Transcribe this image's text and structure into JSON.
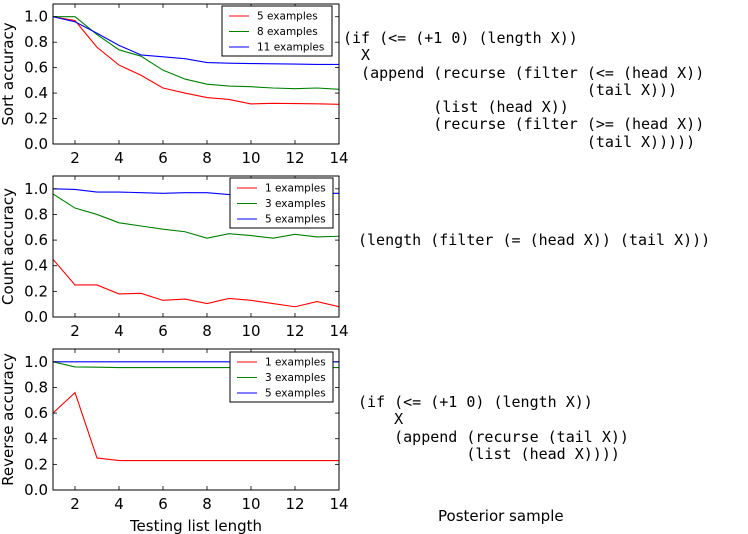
{
  "chart_data": [
    {
      "type": "line",
      "ylabel": "Sort accuracy",
      "xlabel": "",
      "xlim": [
        1,
        14
      ],
      "ylim": [
        0,
        1.1
      ],
      "xticks": [
        "2",
        "4",
        "6",
        "8",
        "10",
        "12",
        "14"
      ],
      "yticks": [
        "0.0",
        "0.2",
        "0.4",
        "0.6",
        "0.8",
        "1.0"
      ],
      "grid": false,
      "legend_position": "top-right",
      "series": [
        {
          "name": "5 examples",
          "color": "#ff0000",
          "x": [
            1,
            2,
            3,
            4,
            5,
            6,
            7,
            8,
            9,
            10,
            11,
            12,
            13,
            14
          ],
          "y": [
            1.0,
            0.97,
            0.76,
            0.62,
            0.54,
            0.44,
            0.4,
            0.365,
            0.35,
            0.315,
            0.32,
            0.318,
            0.316,
            0.312
          ]
        },
        {
          "name": "8 examples",
          "color": "#008000",
          "x": [
            1,
            2,
            3,
            4,
            5,
            6,
            7,
            8,
            9,
            10,
            11,
            12,
            13,
            14
          ],
          "y": [
            1.0,
            1.0,
            0.86,
            0.74,
            0.69,
            0.58,
            0.51,
            0.47,
            0.455,
            0.45,
            0.44,
            0.435,
            0.44,
            0.43
          ]
        },
        {
          "name": "11 examples",
          "color": "#0000ff",
          "x": [
            1,
            2,
            3,
            4,
            5,
            6,
            7,
            8,
            9,
            10,
            11,
            12,
            13,
            14
          ],
          "y": [
            1.0,
            0.96,
            0.87,
            0.775,
            0.7,
            0.685,
            0.67,
            0.64,
            0.635,
            0.632,
            0.63,
            0.628,
            0.625,
            0.625
          ]
        }
      ],
      "code": "(if (<= (+1 0) (length X))\n  X\n  (append (recurse (filter (<= (head X)) \n                           (tail X)))\n          (list (head X))\n          (recurse (filter (>= (head X)) \n                           (tail X)))))"
    },
    {
      "type": "line",
      "ylabel": "Count accuracy",
      "xlabel": "",
      "xlim": [
        1,
        14
      ],
      "ylim": [
        0,
        1.1
      ],
      "xticks": [
        "2",
        "4",
        "6",
        "8",
        "10",
        "12",
        "14"
      ],
      "yticks": [
        "0.0",
        "0.2",
        "0.4",
        "0.6",
        "0.8",
        "1.0"
      ],
      "grid": false,
      "legend_position": "top-right",
      "series": [
        {
          "name": "1 examples",
          "color": "#ff0000",
          "x": [
            1,
            2,
            3,
            4,
            5,
            6,
            7,
            8,
            9,
            10,
            11,
            12,
            13,
            14
          ],
          "y": [
            0.45,
            0.25,
            0.25,
            0.18,
            0.185,
            0.13,
            0.14,
            0.105,
            0.145,
            0.13,
            0.105,
            0.08,
            0.12,
            0.08
          ]
        },
        {
          "name": "3 examples",
          "color": "#008000",
          "x": [
            1,
            2,
            3,
            4,
            5,
            6,
            7,
            8,
            9,
            10,
            11,
            12,
            13,
            14
          ],
          "y": [
            0.96,
            0.85,
            0.8,
            0.735,
            0.71,
            0.685,
            0.665,
            0.615,
            0.65,
            0.635,
            0.615,
            0.645,
            0.625,
            0.63
          ]
        },
        {
          "name": "5 examples",
          "color": "#0000ff",
          "x": [
            1,
            2,
            3,
            4,
            5,
            6,
            7,
            8,
            9,
            10,
            11,
            12,
            13,
            14
          ],
          "y": [
            1.0,
            0.995,
            0.975,
            0.975,
            0.97,
            0.965,
            0.97,
            0.97,
            0.955,
            0.96,
            0.96,
            0.96,
            0.965,
            0.965
          ]
        }
      ],
      "code": "(length (filter (= (head X)) (tail X)))"
    },
    {
      "type": "line",
      "ylabel": "Reverse accuracy",
      "xlabel": "Testing list length",
      "xlim": [
        1,
        14
      ],
      "ylim": [
        0,
        1.1
      ],
      "xticks": [
        "2",
        "4",
        "6",
        "8",
        "10",
        "12",
        "14"
      ],
      "yticks": [
        "0.0",
        "0.2",
        "0.4",
        "0.6",
        "0.8",
        "1.0"
      ],
      "grid": false,
      "legend_position": "top-right",
      "series": [
        {
          "name": "1 examples",
          "color": "#ff0000",
          "x": [
            1,
            2,
            3,
            4,
            5,
            6,
            7,
            8,
            9,
            10,
            11,
            12,
            13,
            14
          ],
          "y": [
            0.6,
            0.76,
            0.25,
            0.23,
            0.23,
            0.23,
            0.23,
            0.23,
            0.23,
            0.23,
            0.23,
            0.23,
            0.23,
            0.23
          ]
        },
        {
          "name": "3 examples",
          "color": "#008000",
          "x": [
            1,
            2,
            3,
            4,
            5,
            6,
            7,
            8,
            9,
            10,
            11,
            12,
            13,
            14
          ],
          "y": [
            1.0,
            0.96,
            0.958,
            0.955,
            0.955,
            0.955,
            0.955,
            0.955,
            0.955,
            0.955,
            0.955,
            0.955,
            0.955,
            0.955
          ]
        },
        {
          "name": "5 examples",
          "color": "#0000ff",
          "x": [
            1,
            2,
            3,
            4,
            5,
            6,
            7,
            8,
            9,
            10,
            11,
            12,
            13,
            14
          ],
          "y": [
            1.0,
            1.0,
            1.0,
            1.0,
            1.0,
            1.0,
            1.0,
            1.0,
            1.0,
            1.0,
            1.0,
            1.0,
            1.0,
            1.0
          ]
        }
      ],
      "code": "(if (<= (+1 0) (length X))\n    X\n    (append (recurse (tail X))\n            (list (head X))))"
    }
  ],
  "posterior_label": "Posterior sample"
}
